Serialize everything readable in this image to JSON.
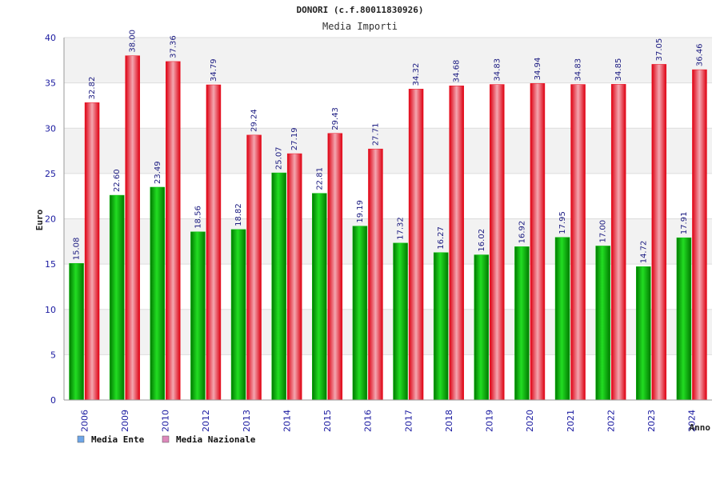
{
  "chart_data": {
    "type": "bar",
    "title": "DONORI (c.f.80011830926)",
    "subtitle": "Media Importi",
    "xlabel": "Anno",
    "ylabel": "Euro",
    "ylim": [
      0,
      40
    ],
    "yticks": [
      0,
      5,
      10,
      15,
      20,
      25,
      30,
      35,
      40
    ],
    "grid": true,
    "legend_position": "bottom-left",
    "categories": [
      "2006",
      "2009",
      "2010",
      "2012",
      "2013",
      "2014",
      "2015",
      "2016",
      "2017",
      "2018",
      "2019",
      "2020",
      "2021",
      "2022",
      "2023",
      "2024"
    ],
    "series": [
      {
        "name": "Media Ente",
        "color": "#00bb00",
        "legend_color": "#6ea6e8",
        "values": [
          15.08,
          22.6,
          23.49,
          18.56,
          18.82,
          25.07,
          22.81,
          19.19,
          17.32,
          16.27,
          16.02,
          16.92,
          17.95,
          17.0,
          14.72,
          17.91
        ],
        "labels": [
          "15.08",
          "22.60",
          "23.49",
          "18.56",
          "18.82",
          "25.07",
          "22.81",
          "19.19",
          "17.32",
          "16.27",
          "16.02",
          "16.92",
          "17.95",
          "17.00",
          "14.72",
          "17.91"
        ]
      },
      {
        "name": "Media Nazionale",
        "color": "#ee1122",
        "legend_color": "#dd88bb",
        "values": [
          32.82,
          38.0,
          37.36,
          34.79,
          29.24,
          27.19,
          29.43,
          27.71,
          34.32,
          34.68,
          34.83,
          34.94,
          34.83,
          34.85,
          37.05,
          36.46
        ],
        "labels": [
          "32.82",
          "38.00",
          "37.36",
          "34.79",
          "29.24",
          "27.19",
          "29.43",
          "27.71",
          "34.32",
          "34.68",
          "34.83",
          "34.94",
          "34.83",
          "34.85",
          "37.05",
          "36.46"
        ]
      }
    ]
  }
}
